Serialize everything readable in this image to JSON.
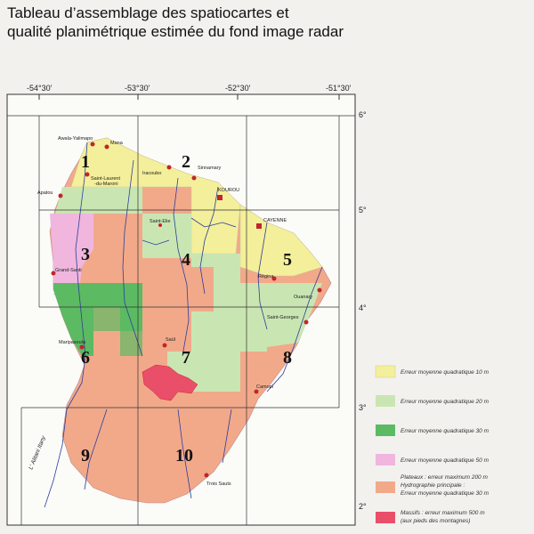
{
  "title": {
    "line1": "Tableau d’assemblage des spatiocartes et",
    "line2": "qualité planimétrique estimée du fond image radar"
  },
  "longitudes": [
    "-54°30'",
    "-53°30'",
    "-52°30'",
    "-51°30'"
  ],
  "latitudes": [
    "6°",
    "5°",
    "4°",
    "3°",
    "2°"
  ],
  "sheets": [
    "1",
    "2",
    "3",
    "4",
    "5",
    "6",
    "7",
    "8",
    "9",
    "10"
  ],
  "places": {
    "awala": "Awala-Yalimapo",
    "mana": "Mana",
    "saint_laurent_1": "Saint-Laurent",
    "saint_laurent_2": "-du-Maroni",
    "iracoubo": "Iracoubo",
    "sinnamary": "Sinnamary",
    "kourou": "KOUROU",
    "apatou": "Apatou",
    "saint_elie": "Saint-Elie",
    "cayenne": "CAYENNE",
    "grand_santi": "Grand-Santi",
    "regina": "Régina",
    "ouanary": "Ouanary",
    "saint_georges": "Saint-Georges",
    "maripasoula": "Maripasoula",
    "saul": "Saül",
    "camopi": "Camopi",
    "trois_sauts": "Trois Sauts"
  },
  "river_label": "L' Alitani Itany",
  "legend": [
    {
      "color": "#f4ef9a",
      "label": "Erreur moyenne quadratique 10 m"
    },
    {
      "color": "#c9e6b2",
      "label": "Erreur moyenne quadratique 20 m"
    },
    {
      "color": "#5cba63",
      "label": "Erreur moyenne quadratique 30 m"
    },
    {
      "color": "#f0b6de",
      "label": "Erreur moyenne quadratique 50 m"
    },
    {
      "color": "#f2a98a",
      "label": "Plateaux : erreur maximum 200 m",
      "label2": "Hydrographie principale :",
      "label3": "Erreur moyenne quadratique 30 m"
    },
    {
      "color": "#ea4f6a",
      "label": "Massifs : erreur maximum 500 m",
      "label2": "(aux pieds des montagnes)"
    }
  ]
}
